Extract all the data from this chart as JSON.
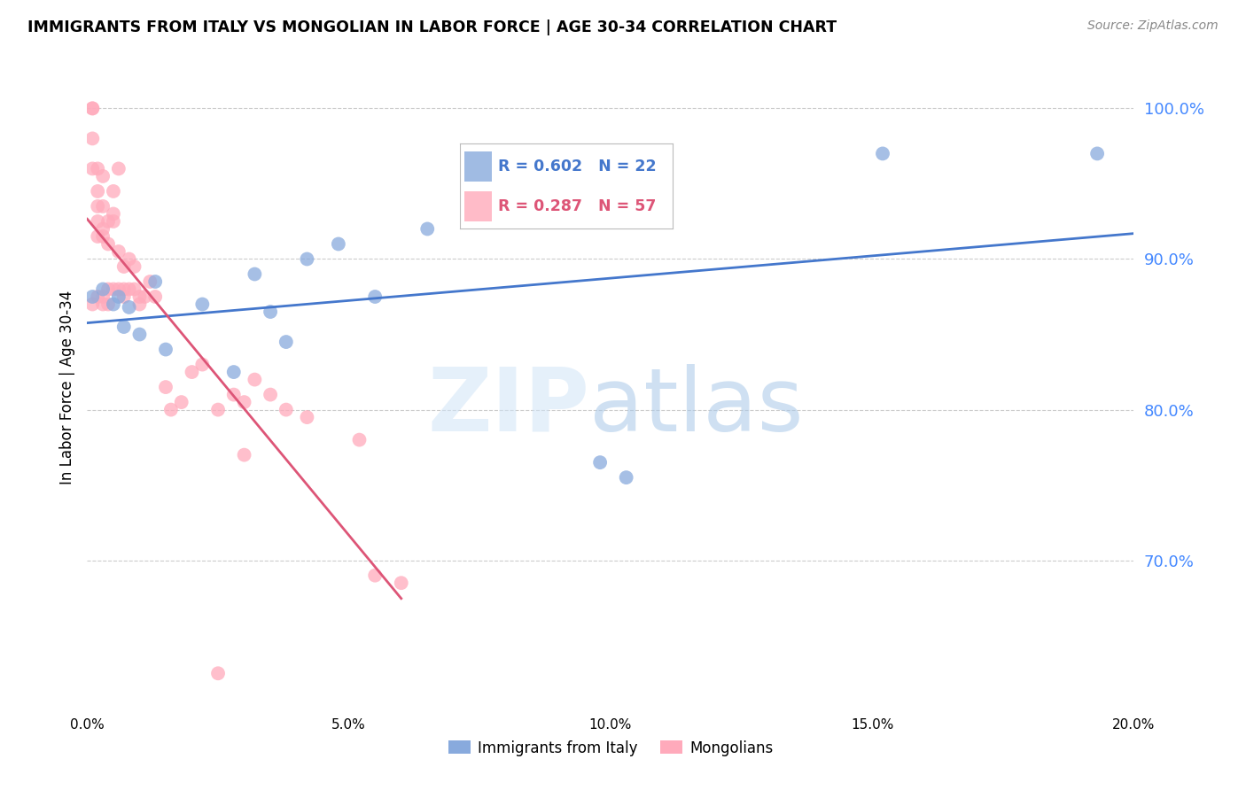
{
  "title": "IMMIGRANTS FROM ITALY VS MONGOLIAN IN LABOR FORCE | AGE 30-34 CORRELATION CHART",
  "source": "Source: ZipAtlas.com",
  "ylabel": "In Labor Force | Age 30-34",
  "xlim": [
    0.0,
    0.2
  ],
  "ylim": [
    0.6,
    1.03
  ],
  "yticks": [
    0.7,
    0.8,
    0.9,
    1.0
  ],
  "ytick_labels": [
    "70.0%",
    "80.0%",
    "90.0%",
    "100.0%"
  ],
  "xticks": [
    0.0,
    0.05,
    0.1,
    0.15,
    0.2
  ],
  "xtick_labels": [
    "0.0%",
    "5.0%",
    "10.0%",
    "15.0%",
    "20.0%"
  ],
  "blue_color": "#88aadd",
  "pink_color": "#ffaabb",
  "blue_line_color": "#4477cc",
  "pink_line_color": "#dd5577",
  "blue_R": 0.602,
  "blue_N": 22,
  "pink_R": 0.287,
  "pink_N": 57,
  "watermark_zip": "ZIP",
  "watermark_atlas": "atlas",
  "legend_label_blue": "Immigrants from Italy",
  "legend_label_pink": "Mongolians",
  "blue_scatter_x": [
    0.001,
    0.003,
    0.005,
    0.006,
    0.007,
    0.008,
    0.01,
    0.013,
    0.015,
    0.022,
    0.028,
    0.032,
    0.035,
    0.038,
    0.042,
    0.048,
    0.055,
    0.065,
    0.098,
    0.103,
    0.152,
    0.193
  ],
  "blue_scatter_y": [
    0.875,
    0.88,
    0.87,
    0.875,
    0.855,
    0.868,
    0.85,
    0.885,
    0.84,
    0.87,
    0.825,
    0.89,
    0.865,
    0.845,
    0.9,
    0.91,
    0.875,
    0.92,
    0.765,
    0.755,
    0.97,
    0.97
  ],
  "pink_scatter_x": [
    0.001,
    0.001,
    0.001,
    0.001,
    0.001,
    0.002,
    0.002,
    0.002,
    0.002,
    0.002,
    0.002,
    0.003,
    0.003,
    0.003,
    0.003,
    0.003,
    0.003,
    0.004,
    0.004,
    0.004,
    0.004,
    0.005,
    0.005,
    0.005,
    0.005,
    0.006,
    0.006,
    0.006,
    0.007,
    0.007,
    0.007,
    0.008,
    0.008,
    0.009,
    0.009,
    0.01,
    0.01,
    0.011,
    0.012,
    0.013,
    0.015,
    0.016,
    0.018,
    0.02,
    0.022,
    0.025,
    0.028,
    0.03,
    0.03,
    0.032,
    0.035,
    0.038,
    0.042,
    0.052,
    0.055,
    0.06,
    0.025
  ],
  "pink_scatter_y": [
    1.0,
    1.0,
    0.98,
    0.96,
    0.87,
    0.96,
    0.945,
    0.935,
    0.925,
    0.915,
    0.875,
    0.955,
    0.935,
    0.92,
    0.915,
    0.875,
    0.87,
    0.925,
    0.91,
    0.88,
    0.87,
    0.945,
    0.93,
    0.925,
    0.88,
    0.96,
    0.905,
    0.88,
    0.895,
    0.88,
    0.875,
    0.9,
    0.88,
    0.895,
    0.88,
    0.875,
    0.87,
    0.875,
    0.885,
    0.875,
    0.815,
    0.8,
    0.805,
    0.825,
    0.83,
    0.8,
    0.81,
    0.805,
    0.77,
    0.82,
    0.81,
    0.8,
    0.795,
    0.78,
    0.69,
    0.685,
    0.625
  ]
}
